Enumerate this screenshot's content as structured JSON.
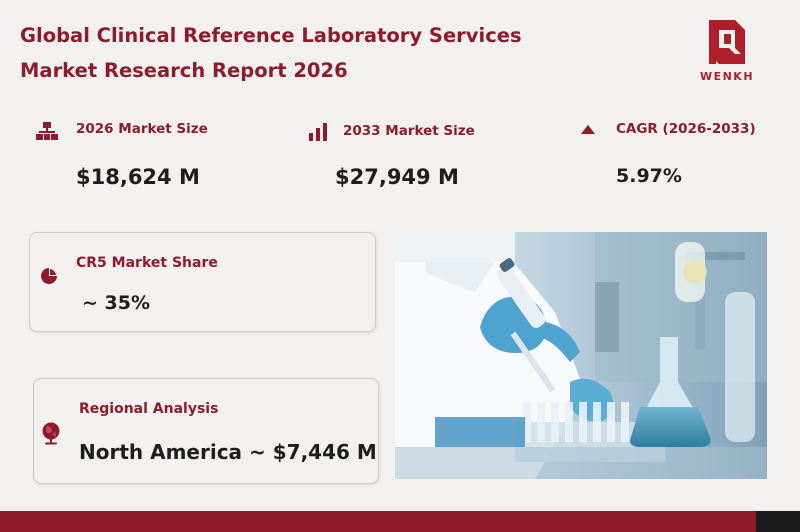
{
  "report": {
    "title_line1": "Global Clinical Reference Laboratory Services",
    "title_line2": "Market Research Report 2026"
  },
  "logo": {
    "text": "WENKH",
    "icon": "wenkh-logo-mark",
    "color": "#b01e2c"
  },
  "stats": {
    "size_2026": {
      "label": "2026 Market Size",
      "value": "$18,624 M",
      "icon": "org-chart-icon"
    },
    "size_2033": {
      "label": "2033 Market Size",
      "value": "$27,949 M",
      "icon": "bar-chart-icon"
    },
    "cagr": {
      "label": "CAGR (2026-2033)",
      "value": "5.97%",
      "icon": "triangle-up-icon"
    }
  },
  "cards": {
    "cr5": {
      "label": "CR5 Market Share",
      "value": "~ 35%",
      "icon": "pie-chart-icon"
    },
    "regional": {
      "label": "Regional Analysis",
      "value": "North America ~ $7,446 M",
      "icon": "globe-icon"
    }
  },
  "photo": {
    "subject": "laboratory-pipette-photo"
  },
  "colors": {
    "accent": "#8e1b2a",
    "background": "#f3f1ef",
    "text": "#1e1e1e",
    "footer_dark": "#1a1a1a"
  }
}
